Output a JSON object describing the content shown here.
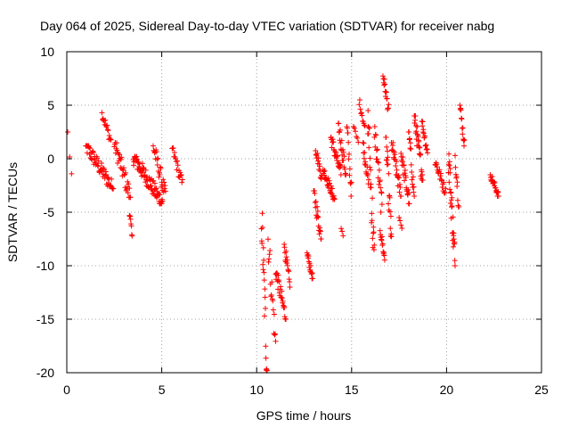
{
  "chart_data": {
    "type": "scatter",
    "title": "Day 064 of 2025, Sidereal Day-to-day VTEC variation (SDTVAR) for receiver nabg",
    "xlabel": "GPS time / hours",
    "ylabel": "SDTVAR / TECUs",
    "xlim": [
      0,
      25
    ],
    "ylim": [
      -20,
      10
    ],
    "xticks": [
      "0",
      "5",
      "10",
      "15",
      "20",
      "25"
    ],
    "yticks": [
      "-20",
      "-15",
      "-10",
      "-5",
      "0",
      "5",
      "10"
    ],
    "grid": true,
    "marker": "plus",
    "color": "#ff0000",
    "series": [
      {
        "name": "SDTVAR",
        "segments": [
          {
            "x0": 0.05,
            "x1": 0.25,
            "y0": 2.5,
            "y1": -1.6,
            "step": 0.1
          },
          {
            "x0": 1.0,
            "x1": 2.45,
            "y0": 1.2,
            "y1": -2.8,
            "step": 0.025
          },
          {
            "x0": 1.85,
            "x1": 2.35,
            "y0": 4.3,
            "y1": 1.5,
            "step": 0.03
          },
          {
            "x0": 2.5,
            "x1": 3.35,
            "y0": 1.5,
            "y1": -3.6,
            "step": 0.025
          },
          {
            "x0": 3.3,
            "x1": 3.45,
            "y0": -4.8,
            "y1": -7.8,
            "step": 0.02
          },
          {
            "x0": 3.5,
            "x1": 5.05,
            "y0": 0.2,
            "y1": -4.2,
            "step": 0.02
          },
          {
            "x0": 4.55,
            "x1": 5.2,
            "y0": 1.2,
            "y1": -3.5,
            "step": 0.025
          },
          {
            "x0": 5.55,
            "x1": 6.1,
            "y0": 1.0,
            "y1": -2.5,
            "step": 0.03
          },
          {
            "x0": 10.25,
            "x1": 10.55,
            "y0": -5.0,
            "y1": -19.8,
            "step": 0.015
          },
          {
            "x0": 10.6,
            "x1": 11.0,
            "y0": -7.5,
            "y1": -17.5,
            "step": 0.025
          },
          {
            "x0": 11.0,
            "x1": 11.55,
            "y0": -10.5,
            "y1": -15.0,
            "step": 0.02
          },
          {
            "x0": 11.45,
            "x1": 11.75,
            "y0": -8.0,
            "y1": -12.0,
            "step": 0.02
          },
          {
            "x0": 12.65,
            "x1": 12.95,
            "y0": -8.8,
            "y1": -11.2,
            "step": 0.02
          },
          {
            "x0": 13.0,
            "x1": 13.4,
            "y0": -3.0,
            "y1": -7.5,
            "step": 0.02
          },
          {
            "x0": 13.1,
            "x1": 13.45,
            "y0": 1.0,
            "y1": -2.0,
            "step": 0.02
          },
          {
            "x0": 13.5,
            "x1": 14.1,
            "y0": -1.0,
            "y1": -3.8,
            "step": 0.02
          },
          {
            "x0": 13.9,
            "x1": 14.45,
            "y0": 2.0,
            "y1": -1.5,
            "step": 0.02
          },
          {
            "x0": 14.3,
            "x1": 14.7,
            "y0": 3.3,
            "y1": -1.5,
            "step": 0.02
          },
          {
            "x0": 14.45,
            "x1": 14.55,
            "y0": -6.5,
            "y1": -7.2,
            "step": 0.05
          },
          {
            "x0": 14.75,
            "x1": 15.0,
            "y0": 3.0,
            "y1": -3.5,
            "step": 0.02
          },
          {
            "x0": 15.1,
            "x1": 15.35,
            "y0": 3.0,
            "y1": 1.5,
            "step": 0.05
          },
          {
            "x0": 15.4,
            "x1": 15.7,
            "y0": 5.5,
            "y1": 2.8,
            "step": 0.03
          },
          {
            "x0": 15.6,
            "x1": 15.9,
            "y0": 1.5,
            "y1": -2.5,
            "step": 0.02
          },
          {
            "x0": 15.85,
            "x1": 16.2,
            "y0": 4.5,
            "y1": -10.0,
            "step": 0.015
          },
          {
            "x0": 16.2,
            "x1": 16.6,
            "y0": 3.0,
            "y1": -5.0,
            "step": 0.02
          },
          {
            "x0": 16.5,
            "x1": 16.75,
            "y0": -6.5,
            "y1": -9.5,
            "step": 0.02
          },
          {
            "x0": 16.65,
            "x1": 16.95,
            "y0": 7.8,
            "y1": 4.5,
            "step": 0.02
          },
          {
            "x0": 16.8,
            "x1": 17.1,
            "y0": 2.0,
            "y1": -8.0,
            "step": 0.015
          },
          {
            "x0": 17.1,
            "x1": 17.6,
            "y0": 1.5,
            "y1": -3.5,
            "step": 0.02
          },
          {
            "x0": 17.5,
            "x1": 17.65,
            "y0": -5.5,
            "y1": -6.5,
            "step": 0.05
          },
          {
            "x0": 17.6,
            "x1": 18.05,
            "y0": 0.5,
            "y1": -4.2,
            "step": 0.02
          },
          {
            "x0": 18.0,
            "x1": 18.3,
            "y0": 2.5,
            "y1": -3.5,
            "step": 0.02
          },
          {
            "x0": 18.3,
            "x1": 18.75,
            "y0": 4.0,
            "y1": -2.0,
            "step": 0.015
          },
          {
            "x0": 18.7,
            "x1": 19.0,
            "y0": 3.5,
            "y1": 0.5,
            "step": 0.02
          },
          {
            "x0": 19.4,
            "x1": 19.95,
            "y0": -0.2,
            "y1": -3.2,
            "step": 0.025
          },
          {
            "x0": 20.1,
            "x1": 20.45,
            "y0": 0.5,
            "y1": -10.0,
            "step": 0.012
          },
          {
            "x0": 20.45,
            "x1": 20.65,
            "y0": 0.3,
            "y1": -4.5,
            "step": 0.02
          },
          {
            "x0": 20.7,
            "x1": 20.95,
            "y0": 5.0,
            "y1": 1.2,
            "step": 0.02
          },
          {
            "x0": 22.3,
            "x1": 22.75,
            "y0": -1.5,
            "y1": -3.5,
            "step": 0.02
          }
        ]
      }
    ]
  }
}
